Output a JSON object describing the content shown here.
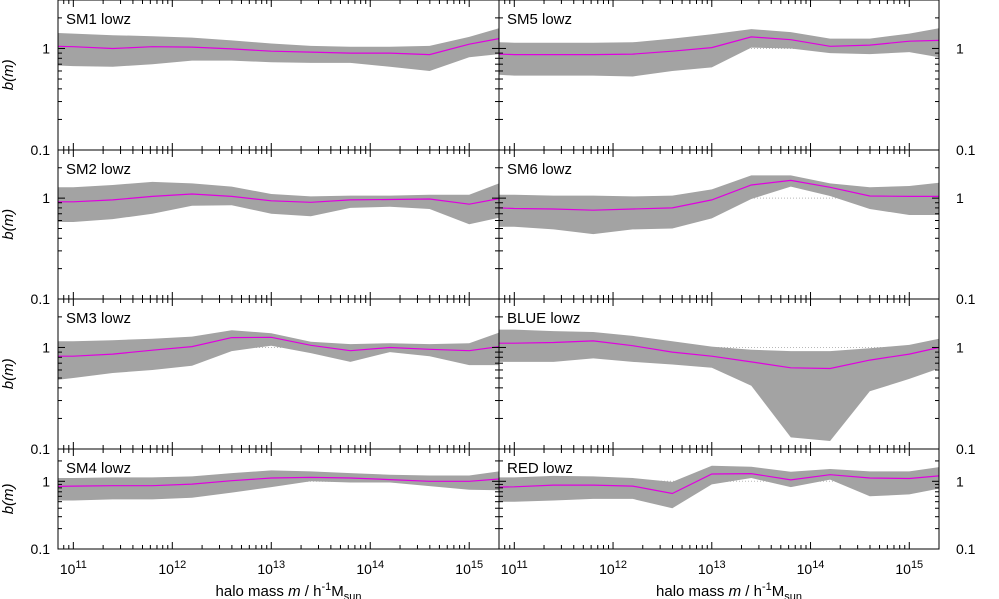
{
  "chart_data": {
    "type": "line",
    "y_scale": "log",
    "x_scale": "log",
    "xlim": [
      70000000000,
      2000000000000000
    ],
    "ylim": [
      0.1,
      3
    ],
    "xlabel_parts": {
      "main": "halo mass ",
      "var": "m",
      "sep": " / h",
      "exp": "-1",
      "unit": "M",
      "sub": "sun"
    },
    "ylabel_parts": {
      "var": "b(m)"
    },
    "x_ticks": [
      {
        "value": 100000000000,
        "base": "10",
        "exp": "11"
      },
      {
        "value": 1000000000000,
        "base": "10",
        "exp": "12"
      },
      {
        "value": 10000000000000,
        "base": "10",
        "exp": "13"
      },
      {
        "value": 100000000000000,
        "base": "10",
        "exp": "14"
      },
      {
        "value": 1000000000000000,
        "base": "10",
        "exp": "15"
      }
    ],
    "y_ticks": [
      {
        "value": 1,
        "label": "1"
      },
      {
        "value": 0.1,
        "label": "0.1"
      }
    ],
    "reference_line": 1,
    "colors": {
      "band": "#a3a3a3",
      "line": "#e000e0",
      "reference": "#b8b8b8",
      "frame": "#000000"
    },
    "x": [
      70000000000,
      100000000000,
      250000000000,
      630000000000,
      1580000000000,
      3980000000000,
      10000000000000,
      25100000000000,
      63100000000000,
      158000000000000,
      398000000000000,
      1000000000000000,
      2000000000000000
    ],
    "panels": [
      {
        "label": "SM1 lowz",
        "mean": [
          1.05,
          1.04,
          1.0,
          1.04,
          1.03,
          0.99,
          0.94,
          0.92,
          0.9,
          0.9,
          0.87,
          1.1,
          1.25
        ],
        "upper": [
          1.42,
          1.4,
          1.35,
          1.32,
          1.28,
          1.2,
          1.12,
          1.06,
          1.04,
          1.04,
          1.06,
          1.3,
          1.58
        ],
        "lower": [
          0.68,
          0.67,
          0.66,
          0.7,
          0.76,
          0.76,
          0.73,
          0.72,
          0.72,
          0.66,
          0.6,
          0.82,
          0.88
        ]
      },
      {
        "label": "SM5 lowz",
        "mean": [
          0.88,
          0.87,
          0.87,
          0.87,
          0.88,
          0.94,
          1.02,
          1.3,
          1.22,
          1.05,
          1.08,
          1.18,
          1.2
        ],
        "upper": [
          1.15,
          1.14,
          1.14,
          1.14,
          1.15,
          1.25,
          1.38,
          1.55,
          1.45,
          1.25,
          1.25,
          1.4,
          1.58
        ],
        "lower": [
          0.55,
          0.54,
          0.54,
          0.54,
          0.53,
          0.6,
          0.65,
          1.02,
          1.0,
          0.9,
          0.88,
          0.92,
          0.82
        ]
      },
      {
        "label": "SM2 lowz",
        "mean": [
          0.92,
          0.92,
          0.96,
          1.04,
          1.1,
          1.04,
          0.94,
          0.91,
          0.96,
          0.97,
          0.98,
          0.87,
          0.99
        ],
        "upper": [
          1.28,
          1.28,
          1.35,
          1.45,
          1.4,
          1.3,
          1.1,
          1.04,
          1.06,
          1.06,
          1.08,
          1.08,
          1.4
        ],
        "lower": [
          0.58,
          0.58,
          0.62,
          0.7,
          0.84,
          0.85,
          0.7,
          0.66,
          0.8,
          0.82,
          0.78,
          0.55,
          0.64
        ]
      },
      {
        "label": "SM6 lowz",
        "mean": [
          0.8,
          0.79,
          0.78,
          0.76,
          0.78,
          0.8,
          0.96,
          1.35,
          1.5,
          1.28,
          1.05,
          1.04,
          1.04
        ],
        "upper": [
          1.08,
          1.08,
          1.06,
          1.06,
          1.04,
          1.06,
          1.22,
          1.68,
          1.68,
          1.4,
          1.28,
          1.32,
          1.42
        ],
        "lower": [
          0.52,
          0.52,
          0.49,
          0.44,
          0.49,
          0.5,
          0.63,
          0.98,
          1.3,
          1.05,
          0.78,
          0.68,
          0.68
        ]
      },
      {
        "label": "SM3 lowz",
        "mean": [
          0.82,
          0.82,
          0.86,
          0.94,
          1.02,
          1.25,
          1.26,
          1.05,
          0.93,
          1.0,
          0.96,
          0.93,
          1.02
        ],
        "upper": [
          1.15,
          1.15,
          1.18,
          1.22,
          1.28,
          1.48,
          1.38,
          1.14,
          1.08,
          1.1,
          1.08,
          1.1,
          1.4
        ],
        "lower": [
          0.48,
          0.5,
          0.56,
          0.6,
          0.66,
          0.92,
          1.04,
          0.88,
          0.72,
          0.9,
          0.82,
          0.67,
          0.67
        ]
      },
      {
        "label": "BLUE lowz",
        "mean": [
          1.1,
          1.1,
          1.12,
          1.16,
          1.04,
          0.9,
          0.82,
          0.72,
          0.63,
          0.62,
          0.75,
          0.86,
          1.0
        ],
        "upper": [
          1.5,
          1.5,
          1.45,
          1.42,
          1.3,
          1.15,
          1.02,
          0.95,
          0.92,
          0.92,
          0.98,
          1.06,
          1.22
        ],
        "lower": [
          0.72,
          0.72,
          0.72,
          0.78,
          0.72,
          0.68,
          0.63,
          0.42,
          0.13,
          0.12,
          0.37,
          0.49,
          0.62
        ]
      },
      {
        "label": "SM4 lowz",
        "mean": [
          0.84,
          0.85,
          0.86,
          0.86,
          0.91,
          1.02,
          1.12,
          1.14,
          1.12,
          1.06,
          1.0,
          1.0,
          1.08
        ],
        "upper": [
          1.12,
          1.12,
          1.14,
          1.14,
          1.18,
          1.32,
          1.45,
          1.4,
          1.32,
          1.25,
          1.22,
          1.22,
          1.4
        ],
        "lower": [
          0.52,
          0.52,
          0.54,
          0.54,
          0.57,
          0.68,
          0.82,
          1.0,
          0.96,
          0.96,
          0.85,
          0.75,
          0.74
        ]
      },
      {
        "label": "RED lowz",
        "mean": [
          0.82,
          0.83,
          0.88,
          0.88,
          0.85,
          0.66,
          1.28,
          1.3,
          1.05,
          1.25,
          1.12,
          1.1,
          1.2
        ],
        "upper": [
          1.14,
          1.14,
          1.2,
          1.18,
          1.12,
          0.98,
          1.7,
          1.64,
          1.38,
          1.52,
          1.4,
          1.4,
          1.62
        ],
        "lower": [
          0.5,
          0.5,
          0.52,
          0.55,
          0.55,
          0.4,
          0.9,
          1.12,
          0.82,
          1.06,
          0.6,
          0.64,
          0.78
        ]
      }
    ]
  }
}
